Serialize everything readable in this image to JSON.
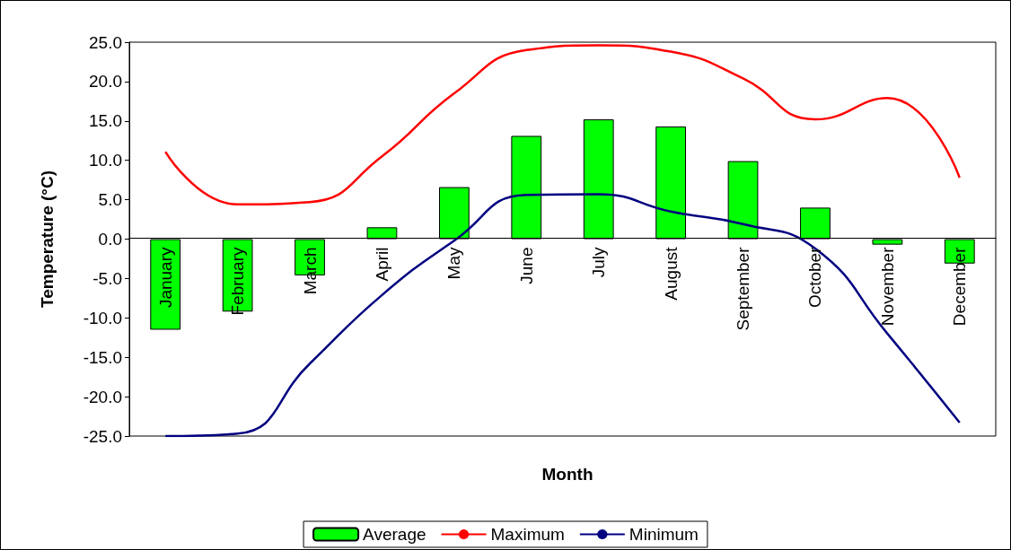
{
  "chart_data": {
    "type": "bar",
    "xlabel": "Month",
    "ylabel": "Temperature (°C)",
    "categories": [
      "January",
      "February",
      "March",
      "April",
      "May",
      "June",
      "July",
      "August",
      "September",
      "October",
      "November",
      "December"
    ],
    "series": [
      {
        "name": "Average",
        "type": "bar",
        "color": "#00ff00",
        "values": [
          -11.5,
          -9.2,
          -4.6,
          1.5,
          6.6,
          13.1,
          15.2,
          14.3,
          9.9,
          4.0,
          -0.7,
          -3.1
        ]
      },
      {
        "name": "Maximum",
        "type": "line",
        "color": "#ff0000",
        "values": [
          11.1,
          4.4,
          4.7,
          10.5,
          18.5,
          24.0,
          24.6,
          23.8,
          20.4,
          15.2,
          17.9,
          7.8
        ]
      },
      {
        "name": "Minimum",
        "type": "line",
        "color": "#000080",
        "values": [
          -25.0,
          -24.7,
          -15.8,
          -7.1,
          -0.2,
          5.6,
          5.7,
          3.5,
          1.9,
          -1.2,
          -12.0,
          -23.3
        ]
      }
    ],
    "ylim": [
      -25,
      25
    ],
    "yticks": [
      {
        "value": -25,
        "label": "-25.0"
      },
      {
        "value": -20,
        "label": "-20.0"
      },
      {
        "value": -15,
        "label": "-15.0"
      },
      {
        "value": -10,
        "label": "-10.0"
      },
      {
        "value": -5,
        "label": "-5.0"
      },
      {
        "value": 0,
        "label": "0.0"
      },
      {
        "value": 5,
        "label": "5.0"
      },
      {
        "value": 10,
        "label": "10.0"
      },
      {
        "value": 15,
        "label": "15.0"
      },
      {
        "value": 20,
        "label": "20.0"
      },
      {
        "value": 25,
        "label": "25.0"
      }
    ],
    "grid": false,
    "legend": "bottom",
    "marker": "none",
    "line_style": "solid"
  }
}
